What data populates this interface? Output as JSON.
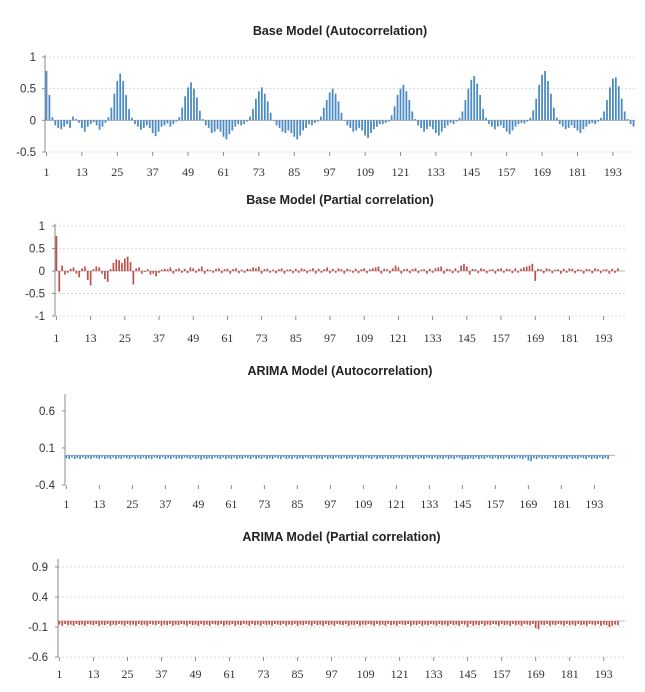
{
  "colors": {
    "blue": "#4a8bc4",
    "red": "#c0504d",
    "grid": "#d9d9d9",
    "axis": "#8c8c8c"
  },
  "chart_data": [
    {
      "type": "bar",
      "title": "Base Model (Autocorrelation)",
      "color": "blue",
      "lags": 200,
      "ylim": [
        -0.5,
        1
      ],
      "yticks": [
        "1",
        "0.5",
        "0",
        "-0.5"
      ],
      "ytick_values": [
        1,
        0.5,
        0,
        -0.5
      ],
      "xticks": [
        "1",
        "13",
        "25",
        "37",
        "49",
        "61",
        "73",
        "85",
        "97",
        "109",
        "121",
        "133",
        "145",
        "157",
        "169",
        "181",
        "193"
      ],
      "gridlines": true,
      "values": [
        0.78,
        0.4,
        0.05,
        -0.08,
        -0.12,
        -0.14,
        -0.1,
        -0.06,
        -0.12,
        0.06,
        0.02,
        -0.04,
        -0.12,
        -0.18,
        -0.1,
        -0.06,
        -0.03,
        -0.08,
        -0.15,
        -0.1,
        -0.04,
        0.05,
        0.2,
        0.42,
        0.62,
        0.74,
        0.62,
        0.4,
        0.18,
        0.04,
        -0.06,
        -0.1,
        -0.15,
        -0.12,
        -0.08,
        -0.12,
        -0.2,
        -0.25,
        -0.18,
        -0.1,
        -0.08,
        -0.05,
        -0.1,
        -0.06,
        -0.02,
        0.05,
        0.2,
        0.38,
        0.52,
        0.6,
        0.5,
        0.36,
        0.15,
        0.02,
        -0.08,
        -0.12,
        -0.2,
        -0.18,
        -0.14,
        -0.18,
        -0.26,
        -0.3,
        -0.22,
        -0.16,
        -0.1,
        -0.06,
        -0.08,
        -0.06,
        -0.02,
        0.06,
        0.18,
        0.34,
        0.46,
        0.52,
        0.42,
        0.3,
        0.12,
        0.0,
        -0.08,
        -0.12,
        -0.18,
        -0.2,
        -0.16,
        -0.2,
        -0.26,
        -0.3,
        -0.24,
        -0.16,
        -0.12,
        -0.06,
        -0.08,
        -0.04,
        -0.02,
        0.06,
        0.2,
        0.32,
        0.44,
        0.5,
        0.42,
        0.3,
        0.12,
        0.0,
        -0.08,
        -0.12,
        -0.18,
        -0.16,
        -0.12,
        -0.16,
        -0.24,
        -0.28,
        -0.2,
        -0.14,
        -0.1,
        -0.06,
        -0.06,
        -0.04,
        -0.02,
        0.08,
        0.22,
        0.4,
        0.5,
        0.56,
        0.46,
        0.32,
        0.14,
        0.02,
        -0.08,
        -0.12,
        -0.18,
        -0.14,
        -0.1,
        -0.14,
        -0.2,
        -0.24,
        -0.18,
        -0.12,
        -0.08,
        -0.04,
        -0.06,
        -0.02,
        0.04,
        0.14,
        0.32,
        0.5,
        0.64,
        0.7,
        0.58,
        0.4,
        0.18,
        0.04,
        -0.06,
        -0.1,
        -0.14,
        -0.1,
        -0.08,
        -0.12,
        -0.18,
        -0.22,
        -0.16,
        -0.1,
        -0.06,
        -0.04,
        -0.05,
        -0.02,
        0.04,
        0.16,
        0.34,
        0.56,
        0.72,
        0.78,
        0.62,
        0.42,
        0.2,
        0.04,
        -0.06,
        -0.1,
        -0.14,
        -0.12,
        -0.08,
        -0.12,
        -0.16,
        -0.2,
        -0.14,
        -0.1,
        -0.06,
        -0.04,
        -0.06,
        -0.02,
        0.04,
        0.14,
        0.32,
        0.52,
        0.66,
        0.68,
        0.54,
        0.34,
        0.14,
        0.02,
        -0.06,
        -0.1
      ]
    },
    {
      "type": "bar",
      "title": "Base Model (Partial correlation)",
      "color": "red",
      "lags": 200,
      "ylim": [
        -1,
        1
      ],
      "yticks": [
        "1",
        "0.5",
        "0",
        "-0.5",
        "-1"
      ],
      "ytick_values": [
        1,
        0.5,
        0,
        -0.5,
        -1
      ],
      "xticks": [
        "1",
        "13",
        "25",
        "37",
        "49",
        "61",
        "73",
        "85",
        "97",
        "109",
        "121",
        "133",
        "145",
        "157",
        "169",
        "181",
        "193"
      ],
      "gridlines": true,
      "values": [
        0.78,
        -0.46,
        0.12,
        -0.08,
        -0.04,
        0.05,
        0.08,
        -0.06,
        -0.14,
        0.06,
        0.1,
        -0.2,
        -0.32,
        0.04,
        0.1,
        0.08,
        -0.06,
        -0.18,
        -0.24,
        0.04,
        0.18,
        0.26,
        0.24,
        0.18,
        0.28,
        0.32,
        0.2,
        -0.3,
        0.06,
        0.08,
        -0.06,
        -0.02,
        0.04,
        -0.08,
        -0.06,
        -0.12,
        -0.04,
        0.03,
        0.05,
        0.04,
        0.08,
        -0.06,
        0.04,
        0.06,
        -0.04,
        0.05,
        -0.05,
        0.08,
        0.06,
        -0.04,
        0.05,
        0.1,
        -0.06,
        0.04,
        0.02,
        -0.04,
        0.05,
        0.06,
        -0.05,
        0.04,
        0.05,
        -0.06,
        0.04,
        0.06,
        -0.05,
        0.03,
        -0.04,
        0.05,
        0.04,
        0.08,
        0.06,
        0.1,
        -0.06,
        0.04,
        0.05,
        -0.04,
        0.03,
        -0.05,
        0.04,
        0.06,
        -0.06,
        0.03,
        0.04,
        -0.05,
        0.05,
        -0.04,
        0.06,
        0.04,
        -0.05,
        0.03,
        0.06,
        -0.06,
        0.05,
        -0.04,
        0.04,
        0.08,
        -0.05,
        0.05,
        -0.04,
        0.06,
        0.04,
        -0.06,
        0.05,
        0.03,
        -0.04,
        0.05,
        -0.05,
        0.04,
        0.06,
        -0.05,
        0.04,
        0.06,
        0.08,
        0.1,
        -0.06,
        0.05,
        0.04,
        -0.05,
        0.06,
        0.12,
        0.08,
        -0.06,
        0.04,
        0.05,
        -0.05,
        0.04,
        0.06,
        -0.05,
        0.03,
        0.04,
        -0.06,
        0.05,
        -0.04,
        0.06,
        0.08,
        0.1,
        -0.06,
        0.05,
        0.04,
        -0.05,
        0.06,
        -0.04,
        0.12,
        0.16,
        0.1,
        -0.08,
        0.05,
        0.04,
        -0.05,
        0.06,
        0.04,
        -0.05,
        0.03,
        0.04,
        -0.06,
        0.05,
        0.06,
        -0.04,
        0.05,
        0.04,
        -0.05,
        0.06,
        -0.04,
        0.05,
        0.08,
        0.1,
        0.12,
        0.16,
        -0.22,
        0.05,
        0.04,
        -0.05,
        0.06,
        0.04,
        -0.05,
        0.03,
        0.04,
        -0.06,
        0.05,
        -0.04,
        0.06,
        0.05,
        -0.05,
        0.04,
        0.03,
        -0.06,
        0.05,
        0.04,
        -0.05,
        0.06,
        0.04,
        -0.05,
        0.03,
        0.04,
        -0.06,
        0.05,
        -0.04,
        0.06
      ]
    },
    {
      "type": "bar",
      "title": "ARIMA Model (Autocorrelation)",
      "color": "blue",
      "lags": 200,
      "ylim": [
        -0.4,
        0.8
      ],
      "yticks": [
        "0.6",
        "0.1",
        "-0.4"
      ],
      "ytick_values": [
        0.6,
        0.1,
        -0.4
      ],
      "xticks": [
        "1",
        "13",
        "25",
        "37",
        "49",
        "61",
        "73",
        "85",
        "97",
        "109",
        "121",
        "133",
        "145",
        "157",
        "169",
        "181",
        "193"
      ],
      "gridlines": false,
      "values": [
        -0.04,
        -0.05,
        -0.03,
        -0.05,
        -0.04,
        -0.05,
        -0.03,
        -0.05,
        -0.04,
        -0.05,
        -0.03,
        -0.04,
        -0.05,
        -0.03,
        -0.05,
        -0.04,
        -0.05,
        -0.03,
        -0.05,
        -0.04,
        -0.05,
        -0.03,
        -0.04,
        -0.05,
        -0.03,
        -0.05,
        -0.04,
        -0.05,
        -0.03,
        -0.05,
        -0.04,
        -0.05,
        -0.03,
        -0.04,
        -0.05,
        -0.03,
        -0.05,
        -0.04,
        -0.05,
        -0.03,
        -0.05,
        -0.04,
        -0.05,
        -0.03,
        -0.04,
        -0.05,
        -0.03,
        -0.05,
        -0.04,
        -0.06,
        -0.04,
        -0.05,
        -0.04,
        -0.05,
        -0.03,
        -0.04,
        -0.05,
        -0.03,
        -0.05,
        -0.04,
        -0.05,
        -0.03,
        -0.05,
        -0.04,
        -0.05,
        -0.03,
        -0.04,
        -0.05,
        -0.03,
        -0.05,
        -0.04,
        -0.05,
        -0.03,
        -0.05,
        -0.04,
        -0.05,
        -0.03,
        -0.04,
        -0.05,
        -0.03,
        -0.05,
        -0.04,
        -0.05,
        -0.03,
        -0.05,
        -0.04,
        -0.05,
        -0.03,
        -0.04,
        -0.05,
        -0.03,
        -0.05,
        -0.04,
        -0.05,
        -0.03,
        -0.05,
        -0.04,
        -0.05,
        -0.03,
        -0.04,
        -0.05,
        -0.03,
        -0.05,
        -0.04,
        -0.05,
        -0.03,
        -0.05,
        -0.04,
        -0.05,
        -0.03,
        -0.04,
        -0.05,
        -0.03,
        -0.05,
        -0.04,
        -0.05,
        -0.03,
        -0.05,
        -0.04,
        -0.05,
        -0.03,
        -0.04,
        -0.05,
        -0.03,
        -0.05,
        -0.04,
        -0.05,
        -0.03,
        -0.05,
        -0.04,
        -0.05,
        -0.03,
        -0.04,
        -0.05,
        -0.03,
        -0.05,
        -0.04,
        -0.05,
        -0.03,
        -0.05,
        -0.04,
        -0.05,
        -0.03,
        -0.04,
        -0.06,
        -0.05,
        -0.05,
        -0.04,
        -0.05,
        -0.03,
        -0.05,
        -0.04,
        -0.05,
        -0.03,
        -0.04,
        -0.05,
        -0.03,
        -0.05,
        -0.04,
        -0.05,
        -0.03,
        -0.05,
        -0.04,
        -0.05,
        -0.03,
        -0.04,
        -0.05,
        -0.03,
        -0.07,
        -0.08,
        -0.04,
        -0.05,
        -0.03,
        -0.05,
        -0.04,
        -0.05,
        -0.03,
        -0.04,
        -0.05,
        -0.03,
        -0.05,
        -0.04,
        -0.05,
        -0.03,
        -0.05,
        -0.04,
        -0.05,
        -0.03,
        -0.04,
        -0.05,
        -0.03,
        -0.05,
        -0.04,
        -0.05,
        -0.03,
        -0.05,
        -0.04,
        -0.05
      ]
    },
    {
      "type": "bar",
      "title": "ARIMA Model (Partial correlation)",
      "color": "red",
      "lags": 200,
      "ylim": [
        -0.6,
        1.0
      ],
      "yticks": [
        "0.9",
        "0.4",
        "-0.1",
        "-0.6"
      ],
      "ytick_values": [
        0.9,
        0.4,
        -0.1,
        -0.6
      ],
      "xticks": [
        "1",
        "13",
        "25",
        "37",
        "49",
        "61",
        "73",
        "85",
        "97",
        "109",
        "121",
        "133",
        "145",
        "157",
        "169",
        "181",
        "193"
      ],
      "gridlines": true,
      "values": [
        -0.06,
        -0.08,
        -0.05,
        -0.07,
        -0.06,
        -0.08,
        -0.05,
        -0.07,
        -0.06,
        -0.08,
        -0.05,
        -0.06,
        -0.07,
        -0.05,
        -0.08,
        -0.06,
        -0.07,
        -0.05,
        -0.08,
        -0.06,
        -0.07,
        -0.05,
        -0.06,
        -0.08,
        -0.05,
        -0.07,
        -0.06,
        -0.08,
        -0.05,
        -0.07,
        -0.06,
        -0.08,
        -0.05,
        -0.06,
        -0.07,
        -0.05,
        -0.08,
        -0.06,
        -0.07,
        -0.05,
        -0.08,
        -0.06,
        -0.07,
        -0.05,
        -0.06,
        -0.08,
        -0.05,
        -0.07,
        -0.06,
        -0.08,
        -0.05,
        -0.07,
        -0.06,
        -0.08,
        -0.05,
        -0.06,
        -0.07,
        -0.05,
        -0.08,
        -0.06,
        -0.07,
        -0.05,
        -0.08,
        -0.06,
        -0.07,
        -0.05,
        -0.06,
        -0.08,
        -0.05,
        -0.07,
        -0.06,
        -0.08,
        -0.05,
        -0.07,
        -0.06,
        -0.08,
        -0.05,
        -0.06,
        -0.07,
        -0.05,
        -0.08,
        -0.06,
        -0.07,
        -0.05,
        -0.08,
        -0.06,
        -0.07,
        -0.05,
        -0.06,
        -0.08,
        -0.05,
        -0.07,
        -0.06,
        -0.08,
        -0.05,
        -0.07,
        -0.06,
        -0.08,
        -0.05,
        -0.06,
        -0.07,
        -0.05,
        -0.08,
        -0.06,
        -0.07,
        -0.05,
        -0.08,
        -0.06,
        -0.07,
        -0.05,
        -0.06,
        -0.08,
        -0.05,
        -0.07,
        -0.06,
        -0.08,
        -0.05,
        -0.07,
        -0.06,
        -0.08,
        -0.05,
        -0.06,
        -0.07,
        -0.05,
        -0.08,
        -0.06,
        -0.07,
        -0.05,
        -0.08,
        -0.06,
        -0.07,
        -0.05,
        -0.06,
        -0.08,
        -0.05,
        -0.07,
        -0.06,
        -0.08,
        -0.05,
        -0.07,
        -0.06,
        -0.08,
        -0.05,
        -0.06,
        -0.1,
        -0.05,
        -0.08,
        -0.06,
        -0.07,
        -0.05,
        -0.08,
        -0.06,
        -0.07,
        -0.05,
        -0.06,
        -0.08,
        -0.05,
        -0.07,
        -0.06,
        -0.08,
        -0.05,
        -0.07,
        -0.06,
        -0.08,
        -0.05,
        -0.06,
        -0.07,
        -0.05,
        -0.12,
        -0.14,
        -0.06,
        -0.07,
        -0.05,
        -0.08,
        -0.06,
        -0.07,
        -0.05,
        -0.06,
        -0.08,
        -0.05,
        -0.07,
        -0.06,
        -0.08,
        -0.05,
        -0.07,
        -0.06,
        -0.08,
        -0.05,
        -0.06,
        -0.07,
        -0.05,
        -0.08,
        -0.06,
        -0.07,
        -0.1,
        -0.08,
        -0.06,
        -0.07
      ]
    }
  ]
}
